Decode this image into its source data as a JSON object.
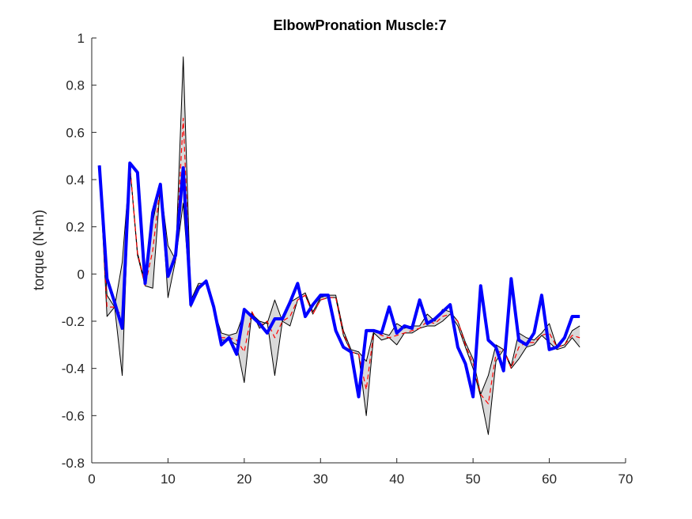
{
  "chart_data": {
    "type": "line",
    "title": "ElbowPronation Muscle:7",
    "xlabel": "",
    "ylabel": "torque (N-m)",
    "xlim": [
      0,
      70
    ],
    "ylim": [
      -0.8,
      1
    ],
    "xticks": [
      0,
      10,
      20,
      30,
      40,
      50,
      60,
      70
    ],
    "yticks": [
      -0.8,
      -0.6,
      -0.4,
      -0.2,
      0,
      0.2,
      0.4,
      0.6,
      0.8,
      1
    ],
    "ytick_labels": [
      "-0.8",
      "-0.6",
      "-0.4",
      "-0.2",
      "0",
      "0.2",
      "0.4",
      "0.6",
      "0.8",
      "1"
    ],
    "xtick_labels": [
      "0",
      "10",
      "20",
      "30",
      "40",
      "50",
      "60",
      "70"
    ],
    "grid": false,
    "x": [
      1,
      2,
      3,
      4,
      5,
      6,
      7,
      8,
      9,
      10,
      11,
      12,
      13,
      14,
      15,
      16,
      17,
      18,
      19,
      20,
      21,
      22,
      23,
      24,
      25,
      26,
      27,
      28,
      29,
      30,
      31,
      32,
      33,
      34,
      35,
      36,
      37,
      38,
      39,
      40,
      41,
      42,
      43,
      44,
      45,
      46,
      47,
      48,
      49,
      50,
      51,
      52,
      53,
      54,
      55,
      56,
      57,
      58,
      59,
      60,
      61,
      62,
      63,
      64
    ],
    "series": [
      {
        "role": "band-upper",
        "color": "#000000",
        "values": [
          0.46,
          -0.09,
          -0.14,
          0.05,
          0.46,
          0.09,
          -0.04,
          0.22,
          0.38,
          0.12,
          0.06,
          0.92,
          -0.11,
          -0.04,
          -0.04,
          -0.15,
          -0.25,
          -0.26,
          -0.25,
          -0.16,
          -0.17,
          -0.2,
          -0.21,
          -0.11,
          -0.2,
          -0.12,
          -0.1,
          -0.08,
          -0.16,
          -0.1,
          -0.09,
          -0.09,
          -0.24,
          -0.32,
          -0.33,
          -0.37,
          -0.24,
          -0.25,
          -0.26,
          -0.21,
          -0.23,
          -0.22,
          -0.22,
          -0.17,
          -0.2,
          -0.15,
          -0.16,
          -0.2,
          -0.29,
          -0.36,
          -0.51,
          -0.43,
          -0.3,
          -0.32,
          -0.39,
          -0.25,
          -0.27,
          -0.28,
          -0.25,
          -0.21,
          -0.31,
          -0.3,
          -0.24,
          -0.22
        ]
      },
      {
        "role": "band-lower",
        "color": "#000000",
        "values": [
          0.46,
          -0.18,
          -0.14,
          -0.43,
          0.46,
          0.08,
          -0.05,
          -0.06,
          0.38,
          -0.1,
          0.06,
          0.3,
          -0.14,
          -0.05,
          -0.04,
          -0.15,
          -0.28,
          -0.28,
          -0.3,
          -0.46,
          -0.16,
          -0.23,
          -0.2,
          -0.43,
          -0.2,
          -0.22,
          -0.11,
          -0.09,
          -0.17,
          -0.11,
          -0.1,
          -0.1,
          -0.26,
          -0.33,
          -0.34,
          -0.6,
          -0.25,
          -0.28,
          -0.27,
          -0.3,
          -0.25,
          -0.25,
          -0.23,
          -0.22,
          -0.22,
          -0.2,
          -0.17,
          -0.22,
          -0.31,
          -0.4,
          -0.52,
          -0.68,
          -0.37,
          -0.32,
          -0.4,
          -0.36,
          -0.31,
          -0.3,
          -0.26,
          -0.29,
          -0.32,
          -0.31,
          -0.27,
          -0.31
        ]
      },
      {
        "role": "mean",
        "color": "#ff0000",
        "dashed": true,
        "values": [
          0.45,
          -0.14,
          -0.14,
          -0.18,
          0.46,
          0.09,
          -0.05,
          0.1,
          0.38,
          0.01,
          0.06,
          0.66,
          -0.12,
          -0.05,
          -0.04,
          -0.15,
          -0.27,
          -0.27,
          -0.28,
          -0.33,
          -0.16,
          -0.22,
          -0.2,
          -0.27,
          -0.2,
          -0.18,
          -0.11,
          -0.09,
          -0.17,
          -0.11,
          -0.1,
          -0.1,
          -0.25,
          -0.33,
          -0.34,
          -0.49,
          -0.24,
          -0.26,
          -0.27,
          -0.26,
          -0.25,
          -0.24,
          -0.23,
          -0.2,
          -0.21,
          -0.18,
          -0.17,
          -0.2,
          -0.3,
          -0.38,
          -0.51,
          -0.55,
          -0.34,
          -0.32,
          -0.4,
          -0.31,
          -0.29,
          -0.29,
          -0.26,
          -0.25,
          -0.31,
          -0.3,
          -0.26,
          -0.27
        ]
      },
      {
        "role": "prediction",
        "color": "#0000ff",
        "values": [
          0.46,
          -0.02,
          -0.12,
          -0.23,
          0.47,
          0.43,
          -0.04,
          0.26,
          0.38,
          -0.01,
          0.08,
          0.45,
          -0.13,
          -0.06,
          -0.03,
          -0.14,
          -0.3,
          -0.27,
          -0.34,
          -0.15,
          -0.18,
          -0.21,
          -0.25,
          -0.19,
          -0.19,
          -0.12,
          -0.04,
          -0.18,
          -0.13,
          -0.09,
          -0.09,
          -0.24,
          -0.31,
          -0.33,
          -0.52,
          -0.24,
          -0.24,
          -0.25,
          -0.14,
          -0.25,
          -0.22,
          -0.23,
          -0.11,
          -0.21,
          -0.19,
          -0.16,
          -0.13,
          -0.31,
          -0.38,
          -0.52,
          -0.05,
          -0.28,
          -0.31,
          -0.41,
          -0.02,
          -0.28,
          -0.3,
          -0.25,
          -0.09,
          -0.32,
          -0.31,
          -0.27,
          -0.18,
          -0.18
        ]
      }
    ]
  }
}
